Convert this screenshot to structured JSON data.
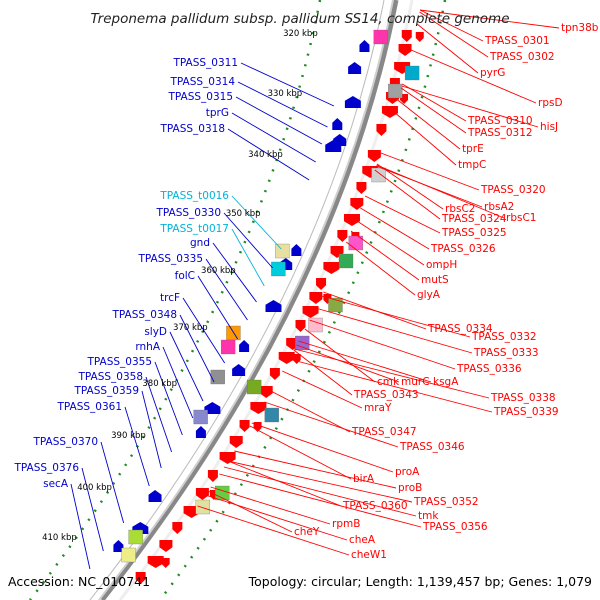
{
  "header": {
    "title": "Treponema pallidum subsp. pallidum SS14, complete genome"
  },
  "footer": {
    "accession": "Accession: NC_010741",
    "topology": "Topology: circular; Length: 1,139,457 bp; Genes: 1,079"
  },
  "colors": {
    "right_strand": "#ff0000",
    "left_strand": "#0000cc",
    "trna": "#00b4d8",
    "backbone": "#888888",
    "ticks": "#228b22"
  },
  "ruler": [
    "320 kbp",
    "330 kbp",
    "340 kbp",
    "350 kbp",
    "360 kbp",
    "370 kbp",
    "380 kbp",
    "390 kbp",
    "400 kbp",
    "410 kbp"
  ],
  "left_labels": [
    {
      "text": "TPASS_0311",
      "kind": "gene"
    },
    {
      "text": "TPASS_0314",
      "kind": "gene"
    },
    {
      "text": "TPASS_0315",
      "kind": "gene"
    },
    {
      "text": "tprG",
      "kind": "gene"
    },
    {
      "text": "TPASS_0318",
      "kind": "gene"
    },
    {
      "text": "TPASS_t0016",
      "kind": "trna"
    },
    {
      "text": "TPASS_0330",
      "kind": "gene"
    },
    {
      "text": "TPASS_t0017",
      "kind": "trna"
    },
    {
      "text": "gnd",
      "kind": "gene"
    },
    {
      "text": "TPASS_0335",
      "kind": "gene"
    },
    {
      "text": "folC",
      "kind": "gene"
    },
    {
      "text": "trcF",
      "kind": "gene"
    },
    {
      "text": "TPASS_0348",
      "kind": "gene"
    },
    {
      "text": "slyD",
      "kind": "gene"
    },
    {
      "text": "rnhA",
      "kind": "gene"
    },
    {
      "text": "TPASS_0355",
      "kind": "gene"
    },
    {
      "text": "TPASS_0358",
      "kind": "gene"
    },
    {
      "text": "TPASS_0359",
      "kind": "gene"
    },
    {
      "text": "TPASS_0361",
      "kind": "gene"
    },
    {
      "text": "TPASS_0370",
      "kind": "gene"
    },
    {
      "text": "TPASS_0376",
      "kind": "gene"
    },
    {
      "text": "secA",
      "kind": "gene"
    }
  ],
  "right_labels": [
    "tpn38b",
    "TPASS_0301",
    "TPASS_0302",
    "pyrG",
    "rpsD",
    "TPASS_0310",
    "hisJ",
    "TPASS_0312",
    "tprE",
    "tmpC",
    "TPASS_0320",
    "rbsA2",
    "rbsC2",
    "TPASS_0324",
    "rbsC1",
    "TPASS_0325",
    "TPASS_0326",
    "ompH",
    "mutS",
    "glyA",
    "TPASS_0334",
    "TPASS_0332",
    "TPASS_0333",
    "TPASS_0336",
    "cmk",
    "murC",
    "ksgA",
    "TPASS_0343",
    "TPASS_0338",
    "TPASS_0339",
    "mraY",
    "TPASS_0347",
    "TPASS_0346",
    "proA",
    "birA",
    "proB",
    "TPASS_0352",
    "TPASS_0360",
    "tmk",
    "TPASS_0356",
    "rpmB",
    "cheY",
    "cheA",
    "cheW1"
  ]
}
